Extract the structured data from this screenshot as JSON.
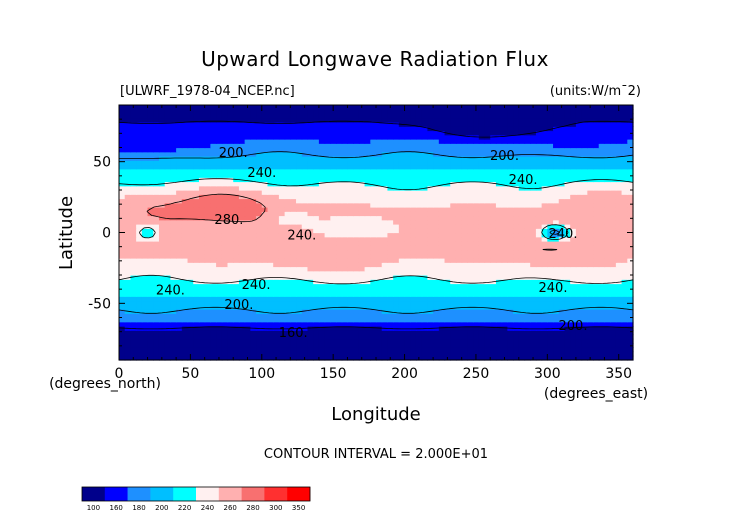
{
  "chart_data": {
    "type": "heatmap",
    "title": "Upward Longwave Radiation Flux",
    "file_label": "[ULWRF_1978-04_NCEP.nc]",
    "units_label": "(units:W/m^2)",
    "xlabel": "Longitude",
    "ylabel": "Latitude",
    "x_unit_label": "(degrees_east)",
    "y_unit_label": "(degrees_north)",
    "xlim": [
      0,
      360
    ],
    "ylim": [
      -90,
      90
    ],
    "x_ticks": [
      0,
      50,
      100,
      150,
      200,
      250,
      300,
      350
    ],
    "y_ticks": [
      -50,
      0,
      50
    ],
    "contour_interval_text": "CONTOUR INTERVAL = 2.000E+01",
    "contour_labels": [
      {
        "text": "200.",
        "lon": 80,
        "lat": 56
      },
      {
        "text": "240.",
        "lon": 100,
        "lat": 42
      },
      {
        "text": "200.",
        "lon": 270,
        "lat": 54
      },
      {
        "text": "240.",
        "lon": 283,
        "lat": 37
      },
      {
        "text": "280.",
        "lon": 77,
        "lat": 9
      },
      {
        "text": "240.",
        "lon": 128,
        "lat": -2
      },
      {
        "text": "240.",
        "lon": 311,
        "lat": -1
      },
      {
        "text": "240.",
        "lon": 36,
        "lat": -41
      },
      {
        "text": "240.",
        "lon": 96,
        "lat": -37
      },
      {
        "text": "200.",
        "lon": 84,
        "lat": -51
      },
      {
        "text": "240.",
        "lon": 304,
        "lat": -39
      },
      {
        "text": "200.",
        "lon": 318,
        "lat": -66
      },
      {
        "text": "160.",
        "lon": 122,
        "lat": -71
      }
    ],
    "colorbar": {
      "levels": [
        100,
        160,
        180,
        200,
        220,
        240,
        260,
        280,
        300,
        350
      ],
      "labels": [
        "100",
        "160",
        "180",
        "200",
        "220",
        "240",
        "260",
        "280",
        "300",
        "350"
      ],
      "colors": [
        "#00008B",
        "#0000FF",
        "#1E90FF",
        "#00BFFF",
        "#00FFFF",
        "#FFF0F0",
        "#FFB0B0",
        "#F87070",
        "#FF3030",
        "#FF0000"
      ]
    }
  }
}
